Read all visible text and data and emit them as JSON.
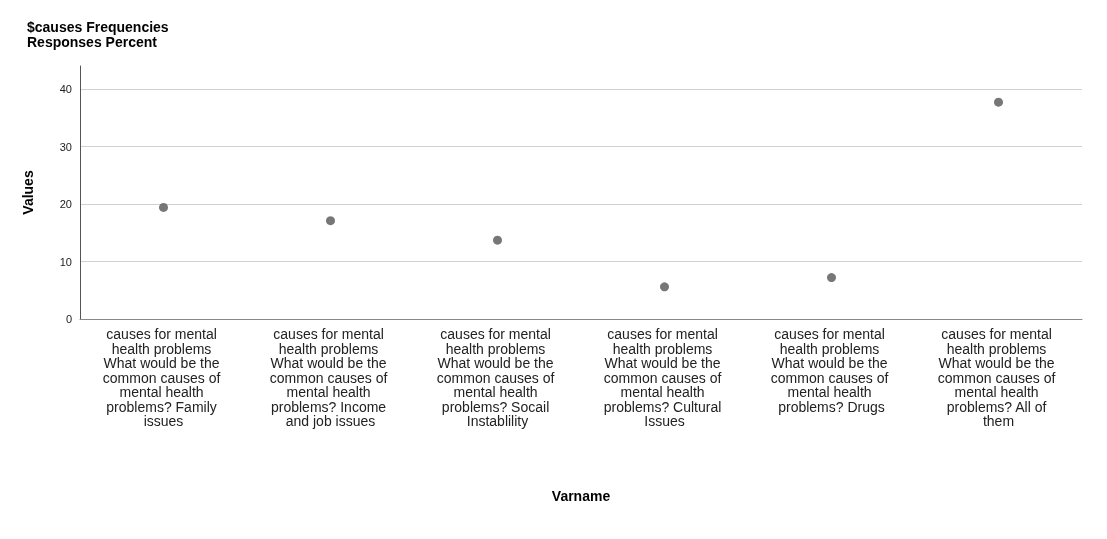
{
  "chart_data": {
    "type": "scatter",
    "title": "$causes Frequencies\nResponses Percent",
    "xlabel": "Varname",
    "ylabel": "Values",
    "categories": [
      "causes for mental health problems What would be the common causes of mental health problems? Family issues",
      "causes for mental health problems What would be the common causes of mental health problems? Income and job issues",
      "causes for mental health problems What would be the common causes of mental health problems? Socail Instablility",
      "causes for mental health problems What would be the common causes of mental health problems? Cultural Issues",
      "causes for mental health problems What would be the common causes of mental health problems? Drugs",
      "causes for mental health problems What would be the common causes of mental health problems? All of them"
    ],
    "values": [
      19.4,
      17.1,
      13.7,
      5.6,
      7.2,
      37.7
    ],
    "color": "#555555",
    "marker": "circle",
    "grid": "y",
    "ylim": [
      0,
      44
    ],
    "yticks": [
      0,
      10,
      20,
      30,
      40
    ]
  }
}
